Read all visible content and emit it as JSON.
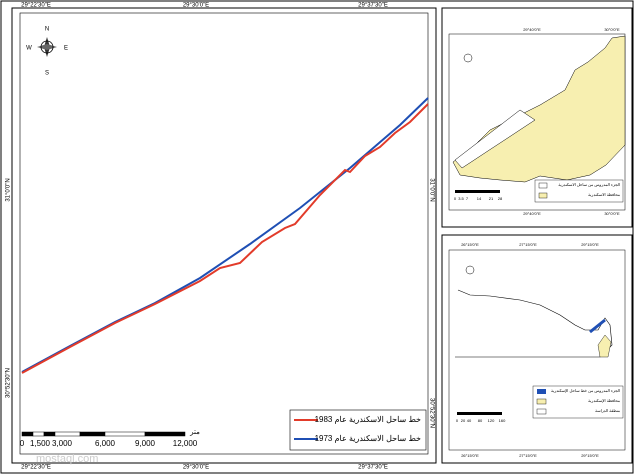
{
  "main_map": {
    "top_labels": [
      "29°22'30\"E",
      "29°30'0\"E",
      "29°37'30\"E"
    ],
    "bottom_labels": [
      "29°22'30\"E",
      "29°30'0\"E",
      "29°37'30\"E"
    ],
    "left_labels": [
      "31°0'0\"N",
      "30°52'30\"N"
    ],
    "right_labels": [
      "31°0'0\"N",
      "30°52'30\"N"
    ],
    "compass": [
      "N",
      "S",
      "E",
      "W"
    ],
    "legend": [
      "خط ساحل الاسكندرية عام 1983",
      "خط ساحل الاسكندرية عام 1973"
    ],
    "scale_labels": [
      "0",
      "1,500",
      "3,000",
      "6,000",
      "9,000",
      "12,000"
    ],
    "scale_unit": "متر",
    "watermark": "mostaql.com"
  },
  "inset_1": {
    "top_labels": [
      "29°40'0\"E",
      "30°0'0\"E"
    ],
    "bottom_labels": [
      "29°40'0\"E",
      "30°0'0\"E"
    ],
    "legend": [
      "الجزء المدروس من ساحل الاسكندرية",
      "محافظة الاسكندرية"
    ],
    "scale_labels": [
      "0",
      "3.5",
      "7",
      "14",
      "21",
      "28"
    ]
  },
  "inset_2": {
    "top_labels": [
      "26°15'0\"E",
      "27°15'0\"E",
      "29°15'0\"E"
    ],
    "bottom_labels": [
      "26°15'0\"E",
      "27°15'0\"E",
      "29°15'0\"E"
    ],
    "legend": [
      "الجزء المدروس من خط ساحل الإسكندرية",
      "محافظة الإسكندرية",
      "منطقة الدراسة"
    ],
    "scale_labels": [
      "0",
      "20",
      "40",
      "80",
      "120",
      "160"
    ]
  }
}
